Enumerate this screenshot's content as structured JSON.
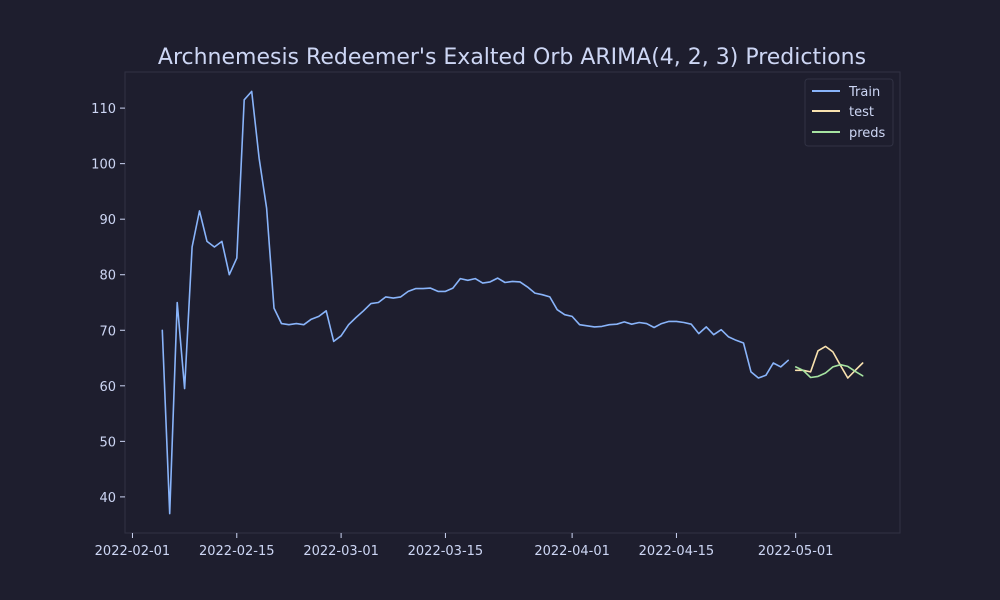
{
  "chart_data": {
    "type": "line",
    "title": "Archnemesis Redeemer's Exalted Orb ARIMA(4, 2, 3) Predictions",
    "xlabel": "",
    "ylabel": "",
    "x_axis_type": "date",
    "xlim": [
      "2022-01-31",
      "2022-05-15"
    ],
    "ylim": [
      33.5,
      116.5
    ],
    "x_ticks": [
      "2022-02-01",
      "2022-02-15",
      "2022-03-01",
      "2022-03-15",
      "2022-04-01",
      "2022-04-15",
      "2022-05-01"
    ],
    "y_ticks": [
      40,
      50,
      60,
      70,
      80,
      90,
      100,
      110
    ],
    "grid": false,
    "legend_position": "top-right",
    "series": [
      {
        "name": "Train",
        "color": "#89b4fa",
        "x": [
          "2022-02-05",
          "2022-02-06",
          "2022-02-07",
          "2022-02-08",
          "2022-02-09",
          "2022-02-10",
          "2022-02-11",
          "2022-02-12",
          "2022-02-13",
          "2022-02-14",
          "2022-02-15",
          "2022-02-16",
          "2022-02-17",
          "2022-02-18",
          "2022-02-19",
          "2022-02-20",
          "2022-02-21",
          "2022-02-22",
          "2022-02-23",
          "2022-02-24",
          "2022-02-25",
          "2022-02-26",
          "2022-02-27",
          "2022-02-28",
          "2022-03-01",
          "2022-03-02",
          "2022-03-03",
          "2022-03-04",
          "2022-03-05",
          "2022-03-06",
          "2022-03-07",
          "2022-03-08",
          "2022-03-09",
          "2022-03-10",
          "2022-03-11",
          "2022-03-12",
          "2022-03-13",
          "2022-03-14",
          "2022-03-15",
          "2022-03-16",
          "2022-03-17",
          "2022-03-18",
          "2022-03-19",
          "2022-03-20",
          "2022-03-21",
          "2022-03-22",
          "2022-03-23",
          "2022-03-24",
          "2022-03-25",
          "2022-03-26",
          "2022-03-27",
          "2022-03-28",
          "2022-03-29",
          "2022-03-30",
          "2022-03-31",
          "2022-04-01",
          "2022-04-02",
          "2022-04-03",
          "2022-04-04",
          "2022-04-05",
          "2022-04-06",
          "2022-04-07",
          "2022-04-08",
          "2022-04-09",
          "2022-04-10",
          "2022-04-11",
          "2022-04-12",
          "2022-04-13",
          "2022-04-14",
          "2022-04-15",
          "2022-04-16",
          "2022-04-17",
          "2022-04-18",
          "2022-04-19",
          "2022-04-20",
          "2022-04-21",
          "2022-04-22",
          "2022-04-23",
          "2022-04-24",
          "2022-04-25",
          "2022-04-26",
          "2022-04-27",
          "2022-04-28",
          "2022-04-29",
          "2022-04-30"
        ],
        "values": [
          70,
          37,
          75,
          59.5,
          85,
          91.5,
          86,
          85,
          86,
          80,
          83,
          111.5,
          113,
          101,
          92,
          74,
          71.2,
          71,
          71.2,
          71,
          72,
          72.5,
          73.5,
          68,
          69,
          71,
          72.3,
          73.5,
          74.8,
          75,
          76,
          75.8,
          76,
          77,
          77.5,
          77.5,
          77.6,
          77,
          77,
          77.6,
          79.3,
          79,
          79.3,
          78.5,
          78.7,
          79.4,
          78.6,
          78.8,
          78.7,
          77.8,
          76.7,
          76.4,
          76,
          73.7,
          72.8,
          72.5,
          71,
          70.8,
          70.6,
          70.7,
          71,
          71.1,
          71.5,
          71.1,
          71.4,
          71.2,
          70.5,
          71.2,
          71.6,
          71.6,
          71.4,
          71.1,
          69.4,
          70.6,
          69.2,
          70.1,
          68.8,
          68.2,
          67.7,
          62.5,
          61.4,
          61.9,
          64.1,
          63.4,
          64.6
        ]
      },
      {
        "name": "test",
        "color": "#f9e2af",
        "x": [
          "2022-05-01",
          "2022-05-02",
          "2022-05-03",
          "2022-05-04",
          "2022-05-05",
          "2022-05-06",
          "2022-05-07",
          "2022-05-08",
          "2022-05-09",
          "2022-05-10"
        ],
        "values": [
          62.8,
          62.8,
          62.5,
          66.3,
          67.1,
          66.1,
          63.7,
          61.4,
          62.8,
          64.1
        ]
      },
      {
        "name": "preds",
        "color": "#a6e3a1",
        "x": [
          "2022-05-01",
          "2022-05-02",
          "2022-05-03",
          "2022-05-04",
          "2022-05-05",
          "2022-05-06",
          "2022-05-07",
          "2022-05-08",
          "2022-05-09",
          "2022-05-10"
        ],
        "values": [
          63.4,
          62.8,
          61.5,
          61.7,
          62.3,
          63.4,
          63.8,
          63.5,
          62.6,
          61.8
        ]
      }
    ]
  },
  "colors": {
    "background": "#1e1e2e",
    "axes_edge": "#313244",
    "text": "#cdd6f4"
  }
}
